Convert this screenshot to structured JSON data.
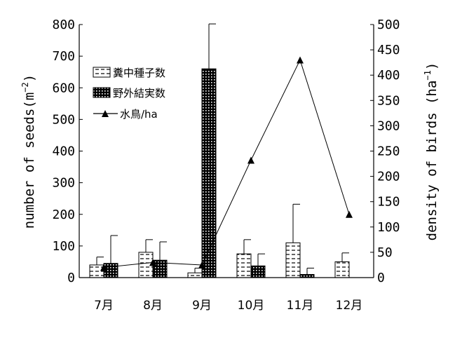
{
  "chart_data": {
    "type": "bar",
    "categories": [
      "7月",
      "8月",
      "9月",
      "10月",
      "11月",
      "12月"
    ],
    "series": [
      {
        "name": "糞中種子数",
        "kind": "bar",
        "axis": "left",
        "pattern": "dashes",
        "values": [
          40,
          80,
          15,
          75,
          110,
          50
        ],
        "errors": [
          25,
          40,
          15,
          45,
          122,
          28
        ]
      },
      {
        "name": "野外結実数",
        "kind": "bar",
        "axis": "left",
        "pattern": "dots",
        "values": [
          45,
          55,
          660,
          37,
          10,
          null
        ],
        "errors": [
          88,
          58,
          142,
          38,
          20,
          null
        ]
      },
      {
        "name": "水鳥/ha",
        "kind": "line",
        "axis": "right",
        "marker": "triangle",
        "values": [
          20,
          30,
          25,
          232,
          430,
          125
        ]
      }
    ],
    "ylabel": "number of seeds(m",
    "ylabel_sup": "−2",
    "ylabel_tail": ")",
    "y2label": "density of birds (ha",
    "y2label_sup": "−1",
    "y2label_tail": ")",
    "ylim": [
      0,
      800
    ],
    "y2lim": [
      0,
      500
    ],
    "yticks": [
      0,
      100,
      200,
      300,
      400,
      500,
      600,
      700,
      800
    ],
    "y2ticks": [
      0,
      50,
      100,
      150,
      200,
      250,
      300,
      350,
      400,
      450,
      500
    ],
    "legend_position": "upper-left",
    "grid": false
  }
}
